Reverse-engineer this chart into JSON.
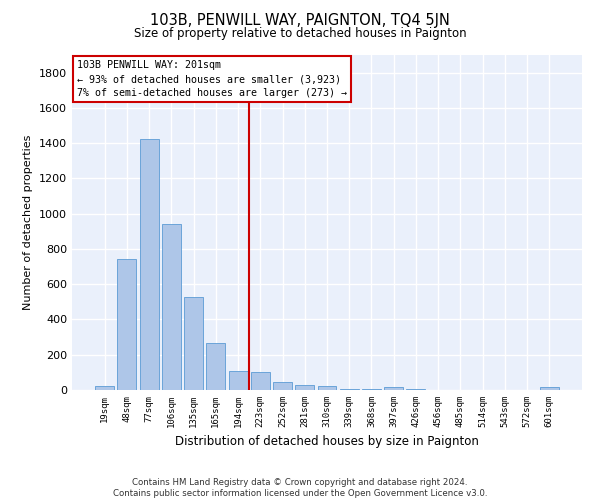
{
  "title": "103B, PENWILL WAY, PAIGNTON, TQ4 5JN",
  "subtitle": "Size of property relative to detached houses in Paignton",
  "xlabel": "Distribution of detached houses by size in Paignton",
  "ylabel": "Number of detached properties",
  "footer_line1": "Contains HM Land Registry data © Crown copyright and database right 2024.",
  "footer_line2": "Contains public sector information licensed under the Open Government Licence v3.0.",
  "bar_labels": [
    "19sqm",
    "48sqm",
    "77sqm",
    "106sqm",
    "135sqm",
    "165sqm",
    "194sqm",
    "223sqm",
    "252sqm",
    "281sqm",
    "310sqm",
    "339sqm",
    "368sqm",
    "397sqm",
    "426sqm",
    "456sqm",
    "485sqm",
    "514sqm",
    "543sqm",
    "572sqm",
    "601sqm"
  ],
  "bar_values": [
    22,
    745,
    1425,
    940,
    530,
    265,
    105,
    100,
    45,
    30,
    25,
    5,
    5,
    15,
    5,
    0,
    0,
    0,
    0,
    0,
    15
  ],
  "bar_color": "#aec6e8",
  "bar_edgecolor": "#5b9bd5",
  "bg_color": "#eaf0fb",
  "fig_color": "#ffffff",
  "grid_color": "#ffffff",
  "vline_x": 6.5,
  "vline_color": "#cc0000",
  "annotation_text": "103B PENWILL WAY: 201sqm\n← 93% of detached houses are smaller (3,923)\n7% of semi-detached houses are larger (273) →",
  "annotation_box_color": "#ffffff",
  "annotation_box_edgecolor": "#cc0000",
  "ylim": [
    0,
    1900
  ],
  "yticks": [
    0,
    200,
    400,
    600,
    800,
    1000,
    1200,
    1400,
    1600,
    1800
  ]
}
